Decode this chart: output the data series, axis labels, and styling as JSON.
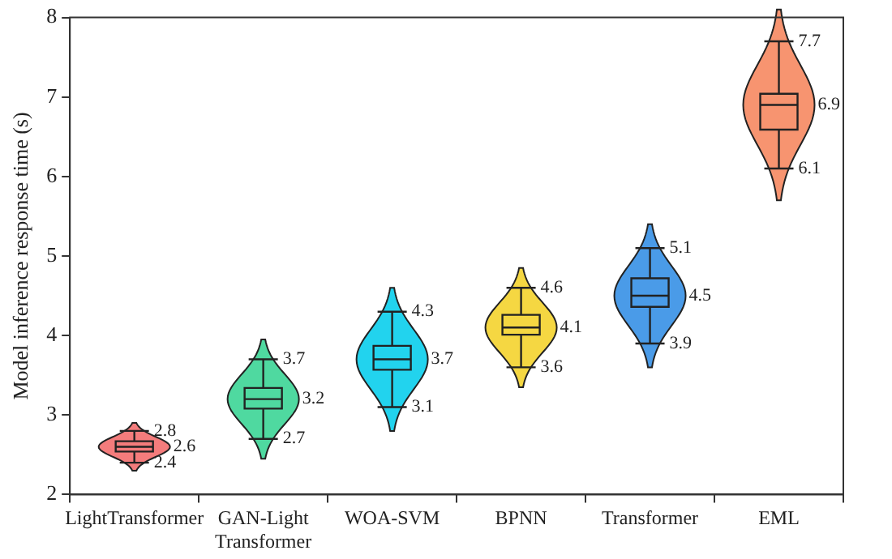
{
  "chart_data": {
    "type": "box",
    "ylabel": "Model inference response time (s)",
    "categories": [
      "LightTransformer",
      "GAN-Light Transformer",
      "WOA-SVM",
      "BPNN",
      "Transformer",
      "EML"
    ],
    "colors": [
      "#f47c7c",
      "#4fd9a0",
      "#22d3ee",
      "#f5d742",
      "#4a9be8",
      "#f79470"
    ],
    "boxes": [
      {
        "low": 2.4,
        "q1": 2.54,
        "median": 2.6,
        "q3": 2.67,
        "high": 2.8
      },
      {
        "low": 2.7,
        "q1": 3.08,
        "median": 3.2,
        "q3": 3.34,
        "high": 3.7
      },
      {
        "low": 3.1,
        "q1": 3.57,
        "median": 3.7,
        "q3": 3.87,
        "high": 4.3
      },
      {
        "low": 3.6,
        "q1": 4.01,
        "median": 4.1,
        "q3": 4.26,
        "high": 4.6
      },
      {
        "low": 3.9,
        "q1": 4.36,
        "median": 4.5,
        "q3": 4.72,
        "high": 5.1
      },
      {
        "low": 6.1,
        "q1": 6.59,
        "median": 6.9,
        "q3": 7.04,
        "high": 7.7
      }
    ],
    "annotations": [
      {
        "text": "2.8",
        "x": "LightTransformer",
        "y": 2.8
      },
      {
        "text": "2.6",
        "x": "LightTransformer",
        "y": 2.6
      },
      {
        "text": "2.4",
        "x": "LightTransformer",
        "y": 2.4
      },
      {
        "text": "3.7",
        "x": "GAN-Light Transformer",
        "y": 3.7
      },
      {
        "text": "3.2",
        "x": "GAN-Light Transformer",
        "y": 3.2
      },
      {
        "text": "2.7",
        "x": "GAN-Light Transformer",
        "y": 2.7
      },
      {
        "text": "4.3",
        "x": "WOA-SVM",
        "y": 4.3
      },
      {
        "text": "3.7",
        "x": "WOA-SVM",
        "y": 3.7
      },
      {
        "text": "3.1",
        "x": "WOA-SVM",
        "y": 3.1
      },
      {
        "text": "4.6",
        "x": "BPNN",
        "y": 4.6
      },
      {
        "text": "4.1",
        "x": "BPNN",
        "y": 4.1
      },
      {
        "text": "3.6",
        "x": "BPNN",
        "y": 3.6
      },
      {
        "text": "5.1",
        "x": "Transformer",
        "y": 5.1
      },
      {
        "text": "4.5",
        "x": "Transformer",
        "y": 4.5
      },
      {
        "text": "3.9",
        "x": "Transformer",
        "y": 3.9
      },
      {
        "text": "7.7",
        "x": "EML",
        "y": 7.7
      },
      {
        "text": "6.9",
        "x": "EML",
        "y": 6.9
      },
      {
        "text": "6.1",
        "x": "EML",
        "y": 6.1
      }
    ],
    "ylim": [
      2,
      8
    ],
    "yticks": [
      2,
      3,
      4,
      5,
      6,
      7,
      8
    ],
    "grid": false,
    "legend": false
  }
}
